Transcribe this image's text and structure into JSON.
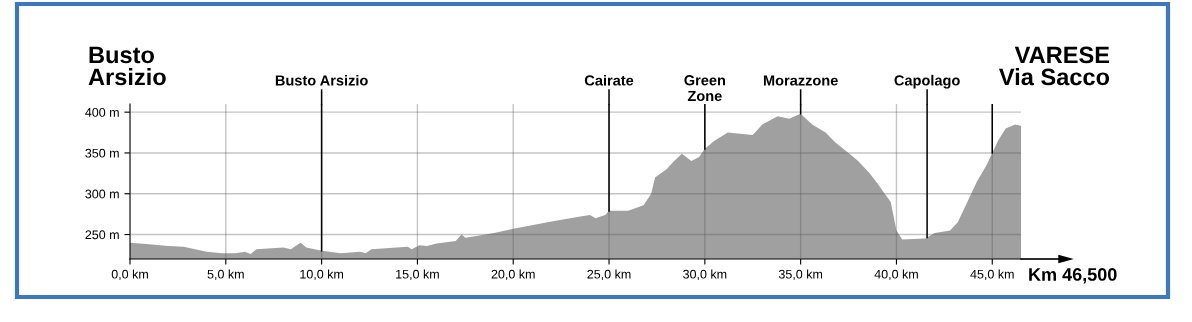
{
  "chart_data": {
    "type": "area",
    "x": [
      0,
      1,
      2,
      2.8,
      4,
      4.8,
      5.5,
      6,
      6.3,
      6.6,
      8,
      8.4,
      8.7,
      8.9,
      9.2,
      10,
      11,
      12,
      12.3,
      12.6,
      14.5,
      14.7,
      15.1,
      15.5,
      16,
      17,
      17.3,
      17.5,
      18,
      19,
      20,
      22,
      23.5,
      24,
      24.3,
      24.8,
      25,
      26,
      26.8,
      27.2,
      27.4,
      28,
      28.4,
      28.8,
      29.3,
      29.7,
      30,
      30.5,
      31.2,
      32.5,
      33,
      33.8,
      34.4,
      35,
      35.6,
      36.3,
      36.8,
      37.5,
      38,
      38.6,
      39,
      39.7,
      40.0,
      40.3,
      41.5,
      42,
      42.8,
      43.2,
      43.7,
      44.2,
      44.7,
      45,
      45.3,
      45.7,
      46.2,
      46.5
    ],
    "series": [
      {
        "color": "#a0a0a0",
        "values": [
          240,
          238,
          236,
          235,
          229,
          227,
          227,
          229,
          226,
          232,
          234,
          232,
          237,
          240,
          234,
          230,
          227,
          229,
          227,
          232,
          235,
          232,
          237,
          236,
          239,
          242,
          250,
          246,
          248,
          252,
          257,
          266,
          272,
          274,
          270,
          274,
          279,
          279,
          286,
          300,
          320,
          330,
          340,
          349,
          340,
          345,
          355,
          365,
          375,
          372,
          385,
          395,
          392,
          398,
          385,
          375,
          363,
          350,
          340,
          325,
          313,
          290,
          255,
          244,
          245,
          252,
          255,
          265,
          290,
          315,
          335,
          350,
          365,
          380,
          385,
          383
        ]
      }
    ],
    "xlim": [
      0,
      46.5
    ],
    "ylim": [
      220,
      410
    ],
    "xticks": [
      {
        "value": 0,
        "label": "0,0 km"
      },
      {
        "value": 5,
        "label": "5,0 km"
      },
      {
        "value": 10,
        "label": "10,0 km"
      },
      {
        "value": 15,
        "label": "15,0 km"
      },
      {
        "value": 20,
        "label": "20,0 km"
      },
      {
        "value": 25,
        "label": "25,0 km"
      },
      {
        "value": 30,
        "label": "30,0 km"
      },
      {
        "value": 35,
        "label": "35,0 km"
      },
      {
        "value": 40,
        "label": "40,0 km"
      },
      {
        "value": 45,
        "label": "45,0 km"
      }
    ],
    "yticks": [
      {
        "value": 250,
        "label": "250 m"
      },
      {
        "value": 300,
        "label": "300 m"
      },
      {
        "value": 350,
        "label": "350 m"
      },
      {
        "value": 400,
        "label": "400 m"
      }
    ],
    "xlabel": "Km 46,500",
    "grid": true,
    "ref_lines": [
      {
        "axis": "x",
        "value": 10,
        "label": "Busto Arsizio",
        "color": "#000000"
      },
      {
        "axis": "x",
        "value": 25,
        "label": "Cairate",
        "color": "#000000"
      },
      {
        "axis": "x",
        "value": 30,
        "label": "Green\nZone",
        "color": "#000000"
      },
      {
        "axis": "x",
        "value": 35,
        "label": "Morazzone",
        "color": "#000000"
      },
      {
        "axis": "x",
        "value": 41.6,
        "label": "Capolago",
        "color": "#000000"
      },
      {
        "axis": "x",
        "value": 45,
        "label": null,
        "color": "#000000"
      }
    ],
    "annotations": [
      "Busto\nArsizio",
      "VARESE\nVia Sacco"
    ]
  }
}
